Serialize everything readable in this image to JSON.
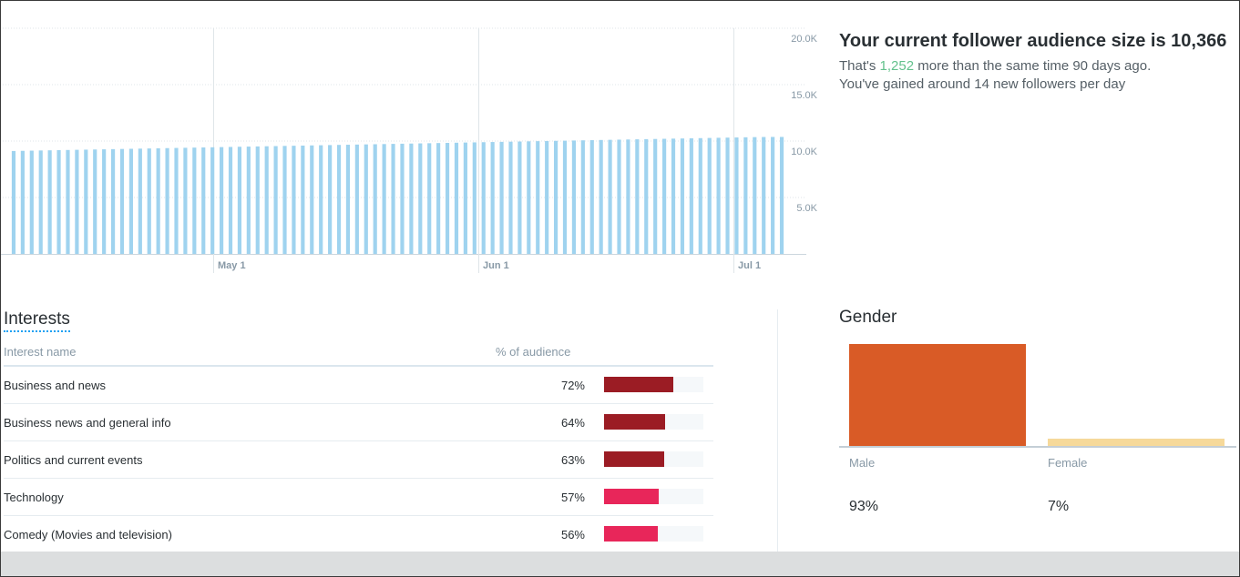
{
  "chart_data": {
    "type": "bar",
    "title": "",
    "ylim": [
      0,
      20000
    ],
    "y_ticks": [
      {
        "value": 5000,
        "label": "5.0K"
      },
      {
        "value": 10000,
        "label": "10.0K"
      },
      {
        "value": 15000,
        "label": "15.0K"
      },
      {
        "value": 20000,
        "label": "20.0K"
      }
    ],
    "x_ticks": [
      "May 1",
      "Jun 1",
      "Jul 1"
    ],
    "grid": true,
    "color": "#9fd3ef",
    "series": [
      {
        "values": [
          9120,
          9135,
          9150,
          9165,
          9180,
          9195,
          9210,
          9225,
          9240,
          9255,
          9270,
          9285,
          9300,
          9315,
          9330,
          9345,
          9360,
          9375,
          9390,
          9405,
          9420,
          9435,
          9450,
          9465,
          9480,
          9495,
          9510,
          9525,
          9540,
          9555,
          9570,
          9585,
          9600,
          9615,
          9630,
          9645,
          9660,
          9675,
          9690,
          9705,
          9720,
          9735,
          9750,
          9765,
          9780,
          9795,
          9810,
          9825,
          9840,
          9855,
          9870,
          9885,
          9900,
          9915,
          9930,
          9945,
          9960,
          9975,
          9990,
          10005,
          10020,
          10035,
          10050,
          10065,
          10080,
          10095,
          10110,
          10125,
          10140,
          10155,
          10170,
          10185,
          10200,
          10215,
          10230,
          10245,
          10260,
          10275,
          10290,
          10305,
          10320,
          10335,
          10350,
          10360,
          10366,
          10366
        ]
      }
    ]
  },
  "summary": {
    "title": "Your current follower audience size is 10,366",
    "line1_prefix": "That's ",
    "line1_highlight": "1,252",
    "line1_suffix": " more than the same time 90 days ago.",
    "line2": "You've gained around 14 new followers per day"
  },
  "interests": {
    "title": "Interests",
    "col_name": "Interest name",
    "col_pct": "% of audience",
    "rows": [
      {
        "name": "Business and news",
        "pct_label": "72%",
        "value": 72,
        "color": "#9b1c24"
      },
      {
        "name": "Business news and general info",
        "pct_label": "64%",
        "value": 64,
        "color": "#9b1c24"
      },
      {
        "name": "Politics and current events",
        "pct_label": "63%",
        "value": 63,
        "color": "#9b1c24"
      },
      {
        "name": "Technology",
        "pct_label": "57%",
        "value": 57,
        "color": "#e8265a"
      },
      {
        "name": "Comedy (Movies and television)",
        "pct_label": "56%",
        "value": 56,
        "color": "#e8265a"
      }
    ]
  },
  "gender": {
    "title": "Gender",
    "items": [
      {
        "label": "Male",
        "pct_label": "93%",
        "value": 93,
        "color": "#d95b26"
      },
      {
        "label": "Female",
        "pct_label": "7%",
        "value": 7,
        "color": "#f6d99a"
      }
    ]
  }
}
